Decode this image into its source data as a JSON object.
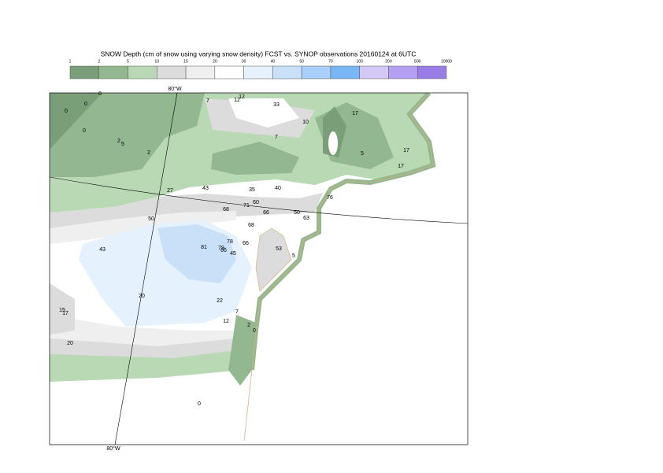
{
  "title": "SNOW Depth (cm of snow using varying snow density) FCST vs. SYNOP observations  20160124 at 6UTC",
  "colorbar": {
    "levels": [
      1,
      2,
      5,
      10,
      15,
      20,
      30,
      40,
      50,
      70,
      100,
      200,
      500,
      10000
    ],
    "colors": [
      "#7a9e78",
      "#93b88f",
      "#b8d9b4",
      "#dcdcdc",
      "#efefef",
      "#ffffff",
      "#e5f1fd",
      "#c8e1f9",
      "#a8d0f8",
      "#78b6f5",
      "#d4c8f6",
      "#b4a0f2",
      "#9a7ce6"
    ]
  },
  "map": {
    "lon_label_top": "80°W",
    "lon_label_bottom": "80°W",
    "observations": [
      0,
      0,
      0,
      0,
      2,
      5,
      2,
      7,
      12,
      12,
      33,
      10,
      7,
      17,
      17,
      5,
      17,
      27,
      43,
      35,
      40,
      68,
      71,
      60,
      66,
      50,
      63,
      76,
      50,
      68,
      43,
      81,
      78,
      79,
      66,
      66,
      45,
      53,
      5,
      20,
      22,
      7,
      12,
      2,
      0,
      15,
      17,
      20,
      0
    ]
  }
}
